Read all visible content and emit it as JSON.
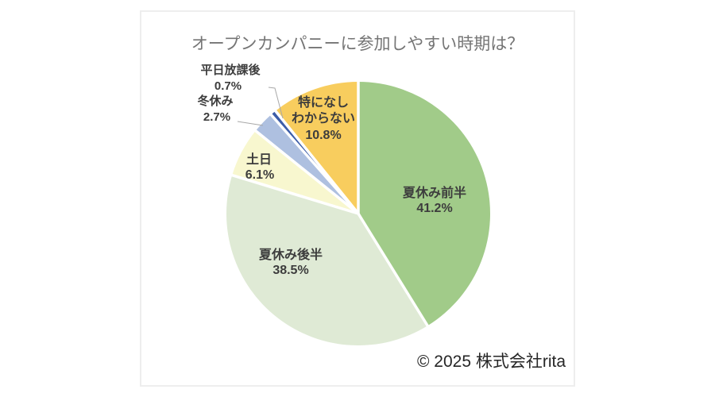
{
  "chart": {
    "title": "オープンカンパニーに参加しやすい時期は？",
    "footer": "© 2025 株式会社rita"
  },
  "chart_data": {
    "type": "pie",
    "title": "オープンカンパニーに参加しやすい時期は？",
    "unit": "%",
    "start_angle_deg": 0,
    "direction": "clockwise",
    "legend": "none",
    "slices": [
      {
        "label": "夏休み前半",
        "value": 41.2,
        "color": "#a1cb89",
        "label_position": "inside"
      },
      {
        "label": "夏休み後半",
        "value": 38.5,
        "color": "#dfead5",
        "label_position": "inside"
      },
      {
        "label": "土日",
        "value": 6.1,
        "color": "#f8f7cf",
        "label_position": "inside"
      },
      {
        "label": "冬休み",
        "value": 2.7,
        "color": "#aec0e0",
        "label_position": "outside"
      },
      {
        "label": "平日放課後",
        "value": 0.7,
        "color": "#3c5da8",
        "label_position": "outside"
      },
      {
        "label": "特になし わからない",
        "label_lines": [
          "特になし",
          "わからない"
        ],
        "value": 10.8,
        "color": "#f8cd5e",
        "label_position": "inside"
      }
    ]
  },
  "colors": {
    "panel_border": "#eeeeee",
    "title_text": "#757575",
    "label_text": "#3d3d3d",
    "footer_text": "#262626",
    "separator": "#ffffff",
    "leader_line": "#a8a8a8"
  }
}
